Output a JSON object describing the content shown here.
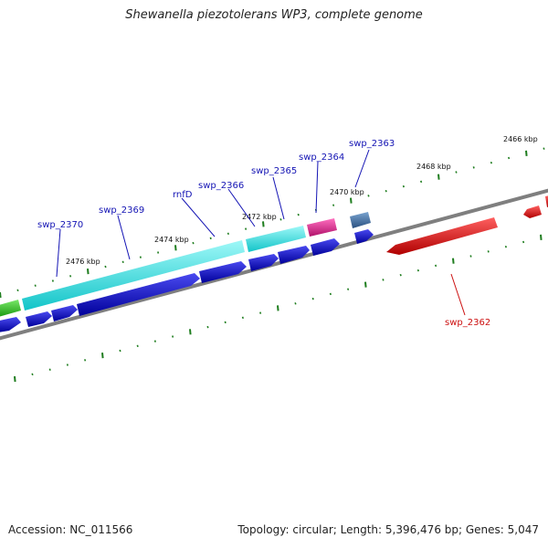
{
  "header": {
    "title": "Shewanella piezotolerans WP3, complete genome"
  },
  "footer": {
    "accession": "Accession: NC_011566",
    "summary": "Topology: circular; Length: 5,396,476 bp; Genes: 5,047"
  },
  "colors": {
    "backbone": "#7f7f7f",
    "cds_blue": "#0b0bd8",
    "gene_cyan": "#18e8ea",
    "gene_red": "#ee1010",
    "gene_magenta": "#e0188c",
    "gene_steel": "#3f6f9f",
    "gene_green": "#2ec11e",
    "tick": "#1e7d1e",
    "label_blue": "#1414b4",
    "label_red": "#cc1010"
  },
  "scale": {
    "labels": [
      "2466 kbp",
      "2468 kbp",
      "2470 kbp",
      "2472 kbp",
      "2474 kbp",
      "2476 kbp"
    ]
  },
  "genes": [
    {
      "name": "swp_2363",
      "color": "label_blue"
    },
    {
      "name": "swp_2364",
      "color": "label_blue"
    },
    {
      "name": "swp_2365",
      "color": "label_blue"
    },
    {
      "name": "swp_2366",
      "color": "label_blue"
    },
    {
      "name": "rnfD",
      "color": "label_blue"
    },
    {
      "name": "swp_2369",
      "color": "label_blue"
    },
    {
      "name": "swp_2370",
      "color": "label_blue"
    },
    {
      "name": "swp_2362",
      "color": "label_red"
    }
  ]
}
